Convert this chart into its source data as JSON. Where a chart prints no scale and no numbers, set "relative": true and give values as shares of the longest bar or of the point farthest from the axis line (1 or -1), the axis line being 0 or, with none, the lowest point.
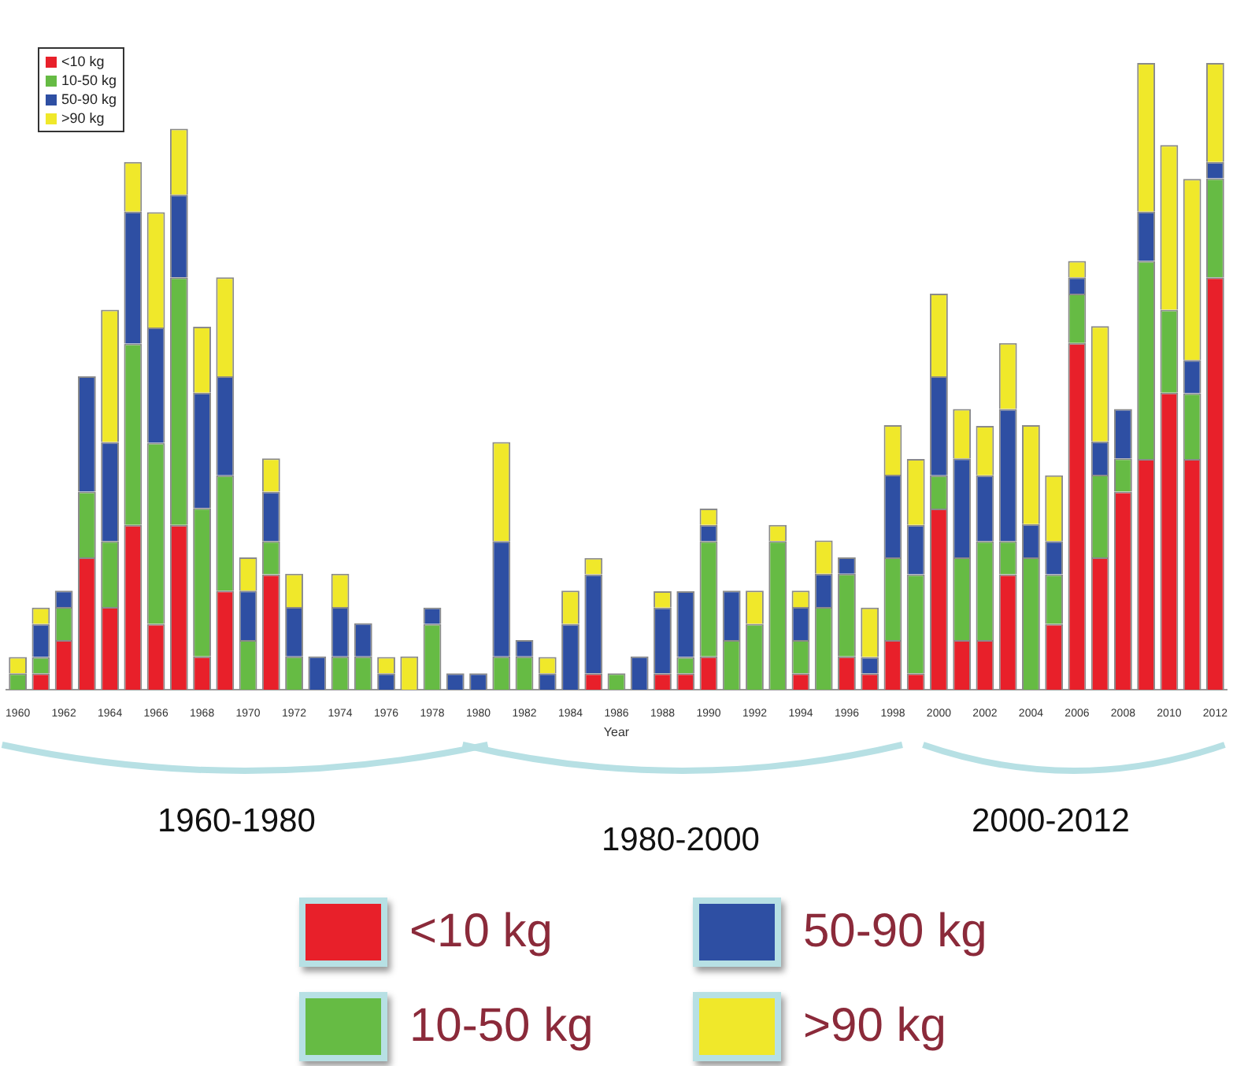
{
  "chart_data": {
    "type": "bar",
    "stacked": true,
    "relative": true,
    "xlabel": "Year",
    "legend": "top left",
    "categories": [
      "1960",
      null,
      "1962",
      null,
      "1964",
      null,
      "1966",
      null,
      "1968",
      null,
      "1970",
      null,
      "1972",
      null,
      "1974",
      null,
      "1976",
      null,
      "1978",
      null,
      "1980",
      null,
      "1982",
      null,
      "1984",
      null,
      "1986",
      null,
      "1988",
      null,
      "1990",
      null,
      "1992",
      null,
      "1994",
      null,
      "1996",
      null,
      "1998",
      null,
      "2000",
      null,
      "2002",
      null,
      "2004",
      null,
      "2006",
      null,
      "2008",
      null,
      "2010",
      null,
      "2012"
    ],
    "series": [
      {
        "name": "<10 kg",
        "color": "#e8202a",
        "values": [
          0,
          0.026,
          0.079,
          0.211,
          0.132,
          0.263,
          0.105,
          0.263,
          0.053,
          0.158,
          0,
          0.184,
          0,
          0,
          0,
          0,
          0,
          0,
          0,
          0,
          0,
          0,
          0,
          0,
          0,
          0.026,
          0,
          0,
          0.026,
          0.026,
          0.053,
          0,
          0,
          0,
          0.026,
          0,
          0.053,
          0.026,
          0.079,
          0.026,
          0.289,
          0.079,
          0.079,
          0.184,
          0,
          0.105,
          0.553,
          0.211,
          0.316,
          0.368,
          0.474,
          0.368,
          0.658
        ]
      },
      {
        "name": "10-50 kg",
        "color": "#66bb44",
        "values": [
          0.026,
          0.026,
          0.053,
          0.105,
          0.105,
          0.289,
          0.289,
          0.395,
          0.237,
          0.184,
          0.079,
          0.053,
          0.053,
          0,
          0.053,
          0.053,
          0,
          0,
          0.105,
          0,
          0,
          0.053,
          0.053,
          0,
          0,
          0,
          0.026,
          0,
          0,
          0.026,
          0.184,
          0.079,
          0.105,
          0.237,
          0.053,
          0.132,
          0.132,
          0,
          0.132,
          0.158,
          0.053,
          0.132,
          0.158,
          0.053,
          0.211,
          0.079,
          0.079,
          0.132,
          0.053,
          0.316,
          0.132,
          0.105,
          0.158
        ]
      },
      {
        "name": "50-90 kg",
        "color": "#2e4fa3",
        "values": [
          0,
          0.053,
          0.026,
          0.184,
          0.158,
          0.211,
          0.184,
          0.132,
          0.184,
          0.158,
          0.079,
          0.079,
          0.079,
          0.053,
          0.079,
          0.053,
          0.026,
          0,
          0.026,
          0.026,
          0.026,
          0.184,
          0.026,
          0.026,
          0.105,
          0.158,
          0,
          0.053,
          0.105,
          0.105,
          0.026,
          0.079,
          0,
          0,
          0.053,
          0.053,
          0.026,
          0.026,
          0.132,
          0.079,
          0.158,
          0.158,
          0.105,
          0.211,
          0.053,
          0.053,
          0.026,
          0.053,
          0.079,
          0.079,
          0,
          0.053,
          0.026
        ]
      },
      {
        "name": ">90 kg",
        "color": "#f0e82a",
        "values": [
          0.026,
          0.026,
          0,
          0,
          0.211,
          0.079,
          0.184,
          0.105,
          0.105,
          0.158,
          0.053,
          0.053,
          0.053,
          0,
          0.053,
          0,
          0.026,
          0.053,
          0,
          0,
          0,
          0.158,
          0,
          0.026,
          0.053,
          0.026,
          0,
          0,
          0.026,
          0,
          0.026,
          0,
          0.053,
          0.026,
          0.026,
          0.053,
          0,
          0.079,
          0.079,
          0.105,
          0.132,
          0.079,
          0.079,
          0.105,
          0.158,
          0.105,
          0.026,
          0.184,
          0,
          0.237,
          0.263,
          0.289,
          0.158
        ]
      }
    ],
    "annotations": [
      "1960-1980",
      "1980-2000",
      "2000-2012"
    ]
  }
}
